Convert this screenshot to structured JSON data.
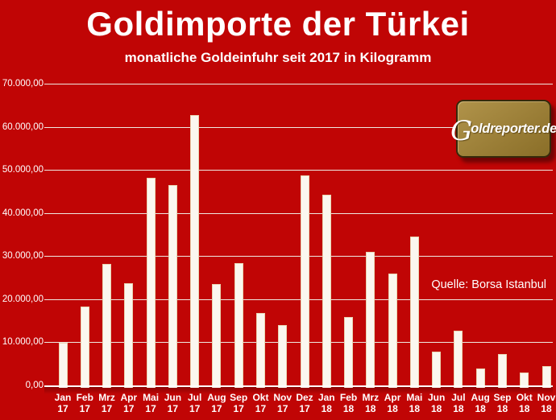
{
  "chart_data": {
    "type": "bar",
    "title": "Goldimporte der Türkei",
    "subtitle": "monatliche Goldeinfuhr seit 2017 in Kilogramm",
    "xlabel": "",
    "ylabel": "",
    "categories": [
      "Jan 17",
      "Feb 17",
      "Mrz 17",
      "Apr 17",
      "Mai 17",
      "Jun 17",
      "Jul 17",
      "Aug 17",
      "Sep 17",
      "Okt 17",
      "Nov 17",
      "Dez 17",
      "Jan 18",
      "Feb 18",
      "Mrz 18",
      "Apr 18",
      "Mai 18",
      "Jun 18",
      "Jul 18",
      "Aug 18",
      "Sep 18",
      "Okt 18",
      "Nov 18"
    ],
    "values": [
      9900,
      18300,
      28200,
      23700,
      48100,
      46400,
      62800,
      23500,
      28400,
      16800,
      14000,
      48800,
      44200,
      15900,
      31000,
      26000,
      34600,
      7800,
      12700,
      3900,
      7200,
      2900,
      4500
    ],
    "ylim": [
      0,
      70000
    ],
    "yticks": [
      {
        "value": 70000,
        "label": "70.000,00"
      },
      {
        "value": 60000,
        "label": "60.000,00"
      },
      {
        "value": 50000,
        "label": "50.000,00"
      },
      {
        "value": 40000,
        "label": "40.000,00"
      },
      {
        "value": 30000,
        "label": "30.000,00"
      },
      {
        "value": 20000,
        "label": "20.000,00"
      },
      {
        "value": 10000,
        "label": "10.000,00"
      },
      {
        "value": 0,
        "label": "0,00"
      }
    ],
    "grid": true,
    "legend": false
  },
  "source_note": "Quelle: Borsa Istanbul",
  "logo": {
    "initial": "G",
    "rest": "oldreporter.de"
  },
  "colors": {
    "background": "#C00505",
    "bar_fill": "#FBF7EF",
    "bar_border": "#E9D5B2",
    "gridline": "#EFEAE2",
    "text": "#FFFFFF",
    "logo_face_top": "#B0934A",
    "logo_face_bottom": "#8A6E28",
    "logo_border": "#35290A"
  }
}
